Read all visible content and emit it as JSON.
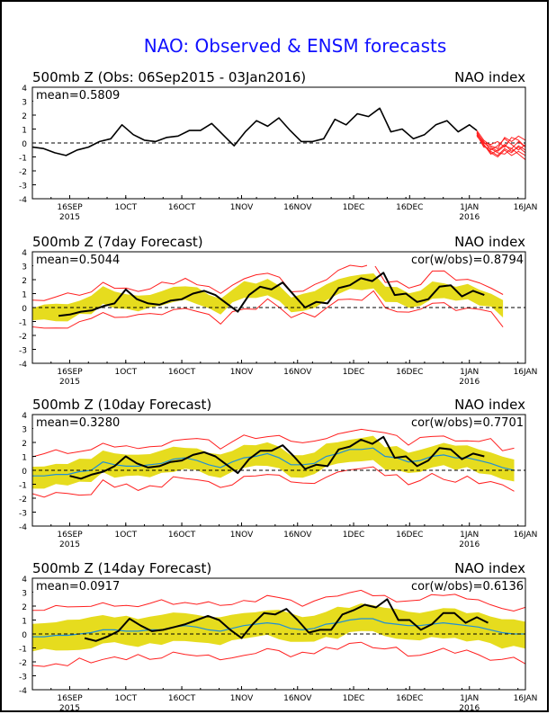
{
  "page": {
    "title": "NAO: Observed & ENSM forecasts",
    "title_color": "#1010ff",
    "border_color": "#000000"
  },
  "colors": {
    "observed": "#000000",
    "ensemble_members": "#ff2020",
    "spread_band": "#e6dc1e",
    "ensemble_mean": "#1e8fd8",
    "zero_line": "#000000"
  },
  "axes": {
    "ylim": [
      -4,
      4
    ],
    "yticks": [
      "4",
      "3",
      "2",
      "1",
      "0",
      "-1",
      "-2",
      "-3",
      "-4"
    ],
    "x_range_days": [
      "2015-09-06",
      "2016-01-16"
    ],
    "xticks": [
      {
        "date": "2015-09-16",
        "label": "16SEP",
        "year": "2015"
      },
      {
        "date": "2015-10-01",
        "label": "1OCT",
        "year": ""
      },
      {
        "date": "2015-10-16",
        "label": "16OCT",
        "year": ""
      },
      {
        "date": "2015-11-01",
        "label": "1NOV",
        "year": ""
      },
      {
        "date": "2015-11-16",
        "label": "16NOV",
        "year": ""
      },
      {
        "date": "2015-12-01",
        "label": "1DEC",
        "year": ""
      },
      {
        "date": "2015-12-16",
        "label": "16DEC",
        "year": ""
      },
      {
        "date": "2016-01-01",
        "label": "1JAN",
        "year": "2016"
      },
      {
        "date": "2016-01-16",
        "label": "16JAN",
        "year": ""
      }
    ]
  },
  "panels": [
    {
      "title": "500mb Z (Obs: 06Sep2015 - 03Jan2016)",
      "right_label": "NAO index",
      "mean_text": "mean=0.5809",
      "cor_text": ""
    },
    {
      "title": "500mb Z (7day Forecast)",
      "right_label": "NAO index",
      "mean_text": "mean=0.5044",
      "cor_text": "cor(w/obs)=0.8794"
    },
    {
      "title": "500mb Z (10day Forecast)",
      "right_label": "NAO index",
      "mean_text": "mean=0.3280",
      "cor_text": "cor(w/obs)=0.7701"
    },
    {
      "title": "500mb Z (14day Forecast)",
      "right_label": "NAO index",
      "mean_text": "mean=0.0917",
      "cor_text": "cor(w/obs)=0.6136"
    }
  ],
  "chart_data": [
    {
      "type": "line",
      "title": "500mb Z (Obs: 06Sep2015 - 03Jan2016)",
      "ylabel": "",
      "ylim": [
        -4,
        4
      ],
      "series": [
        {
          "key": "observed",
          "x": [
            "2015-09-06",
            "2015-09-09",
            "2015-09-12",
            "2015-09-15",
            "2015-09-18",
            "2015-09-21",
            "2015-09-24",
            "2015-09-27",
            "2015-09-30",
            "2015-10-03",
            "2015-10-06",
            "2015-10-09",
            "2015-10-12",
            "2015-10-15",
            "2015-10-18",
            "2015-10-21",
            "2015-10-24",
            "2015-10-27",
            "2015-10-30",
            "2015-11-02",
            "2015-11-05",
            "2015-11-08",
            "2015-11-11",
            "2015-11-14",
            "2015-11-17",
            "2015-11-20",
            "2015-11-23",
            "2015-11-26",
            "2015-11-29",
            "2015-12-02",
            "2015-12-05",
            "2015-12-08",
            "2015-12-11",
            "2015-12-14",
            "2015-12-17",
            "2015-12-20",
            "2015-12-23",
            "2015-12-26",
            "2015-12-29",
            "2016-01-01",
            "2016-01-03"
          ],
          "y": [
            -0.3,
            -0.4,
            -0.7,
            -0.9,
            -0.5,
            -0.3,
            0.1,
            0.3,
            1.3,
            0.6,
            0.2,
            0.1,
            0.4,
            0.5,
            0.9,
            0.9,
            1.4,
            0.6,
            -0.2,
            0.8,
            1.6,
            1.2,
            1.8,
            0.9,
            0.1,
            0.1,
            0.3,
            1.7,
            1.3,
            2.1,
            1.9,
            2.5,
            0.8,
            1.0,
            0.3,
            0.6,
            1.3,
            1.6,
            0.8,
            1.3,
            0.9
          ]
        }
      ],
      "ensemble_members": {
        "x_start": "2016-01-03",
        "x_end": "2016-01-16",
        "members": [
          [
            0.8,
            0.0,
            -0.3,
            -0.6,
            -0.2,
            -0.4,
            0.1,
            -0.3
          ],
          [
            0.6,
            -0.2,
            -0.6,
            -0.9,
            -0.4,
            -0.7,
            -0.2,
            -0.5
          ],
          [
            0.7,
            0.1,
            -0.5,
            -0.2,
            0.3,
            -0.1,
            -0.5,
            -0.1
          ],
          [
            0.5,
            -0.1,
            -0.7,
            -1.0,
            -0.5,
            -0.9,
            -0.6,
            -0.9
          ],
          [
            0.9,
            0.2,
            -0.2,
            -0.4,
            0.4,
            0.1,
            0.5,
            0.2
          ],
          [
            0.6,
            -0.3,
            -0.4,
            -0.7,
            -0.8,
            -0.4,
            -0.8,
            -1.2
          ],
          [
            0.7,
            0.0,
            -0.1,
            0.1,
            -0.3,
            0.4,
            0.2,
            -0.3
          ],
          [
            0.8,
            -0.1,
            -0.8,
            -0.5,
            -0.1,
            -0.6,
            -0.3,
            -0.7
          ]
        ]
      }
    },
    {
      "type": "line",
      "title": "500mb Z (7day Forecast)",
      "ylim": [
        -4,
        4
      ],
      "observed": {
        "x": [
          "2015-09-13",
          "2015-09-16",
          "2015-09-19",
          "2015-09-22",
          "2015-09-25",
          "2015-09-28",
          "2015-10-01",
          "2015-10-04",
          "2015-10-07",
          "2015-10-10",
          "2015-10-13",
          "2015-10-16",
          "2015-10-19",
          "2015-10-22",
          "2015-10-25",
          "2015-10-28",
          "2015-10-31",
          "2015-11-03",
          "2015-11-06",
          "2015-11-09",
          "2015-11-12",
          "2015-11-15",
          "2015-11-18",
          "2015-11-21",
          "2015-11-24",
          "2015-11-27",
          "2015-11-30",
          "2015-12-03",
          "2015-12-06",
          "2015-12-09",
          "2015-12-12",
          "2015-12-15",
          "2015-12-18",
          "2015-12-21",
          "2015-12-24",
          "2015-12-27",
          "2015-12-30",
          "2016-01-02",
          "2016-01-05"
        ],
        "y": [
          -0.6,
          -0.5,
          -0.3,
          -0.2,
          0.1,
          0.3,
          1.3,
          0.6,
          0.3,
          0.2,
          0.5,
          0.6,
          1.0,
          1.2,
          0.9,
          0.3,
          -0.3,
          0.9,
          1.5,
          1.3,
          1.8,
          0.9,
          0.0,
          0.4,
          0.3,
          1.4,
          1.6,
          2.1,
          1.9,
          2.5,
          0.9,
          1.0,
          0.4,
          0.6,
          1.5,
          1.6,
          0.8,
          1.2,
          0.9
        ]
      },
      "ensemble_mean": {
        "x_start": "2015-09-06",
        "x_end": "2016-01-10",
        "y": [
          -0.5,
          -0.4,
          -0.3,
          -0.3,
          0.0,
          0.2,
          0.9,
          0.6,
          0.4,
          0.3,
          0.5,
          0.6,
          0.9,
          1.0,
          0.8,
          0.4,
          0.1,
          0.8,
          1.2,
          1.1,
          1.4,
          0.9,
          0.3,
          0.4,
          0.5,
          1.2,
          1.4,
          1.8,
          1.7,
          2.0,
          1.0,
          0.9,
          0.5,
          0.7,
          1.3,
          1.3,
          0.9,
          1.0,
          0.8,
          0.5,
          -0.1
        ]
      },
      "spread_halfwidth": 0.55,
      "red_envelope_extra": 0.5
    },
    {
      "type": "line",
      "title": "500mb Z (10day Forecast)",
      "ylim": [
        -4,
        4
      ],
      "observed": {
        "x": [
          "2015-09-16",
          "2015-09-19",
          "2015-09-22",
          "2015-09-25",
          "2015-09-28",
          "2015-10-01",
          "2015-10-04",
          "2015-10-07",
          "2015-10-10",
          "2015-10-13",
          "2015-10-16",
          "2015-10-19",
          "2015-10-22",
          "2015-10-25",
          "2015-10-28",
          "2015-10-31",
          "2015-11-03",
          "2015-11-06",
          "2015-11-09",
          "2015-11-12",
          "2015-11-15",
          "2015-11-18",
          "2015-11-21",
          "2015-11-24",
          "2015-11-27",
          "2015-11-30",
          "2015-12-03",
          "2015-12-06",
          "2015-12-09",
          "2015-12-12",
          "2015-12-15",
          "2015-12-18",
          "2015-12-21",
          "2015-12-24",
          "2015-12-27",
          "2015-12-30",
          "2016-01-02",
          "2016-01-05"
        ],
        "y": [
          -0.4,
          -0.6,
          -0.3,
          -0.1,
          0.3,
          1.0,
          0.5,
          0.2,
          0.3,
          0.6,
          0.7,
          1.1,
          1.3,
          1.0,
          0.4,
          -0.2,
          0.8,
          1.4,
          1.4,
          1.8,
          1.0,
          0.1,
          0.4,
          0.3,
          1.5,
          1.7,
          2.2,
          1.9,
          2.4,
          0.9,
          1.0,
          0.3,
          0.7,
          1.6,
          1.5,
          0.8,
          1.2,
          1.0
        ]
      },
      "ensemble_mean": {
        "x_start": "2015-09-06",
        "x_end": "2016-01-13",
        "y": [
          -0.4,
          -0.4,
          -0.3,
          -0.3,
          -0.1,
          0.0,
          0.6,
          0.4,
          0.3,
          0.3,
          0.4,
          0.5,
          0.8,
          0.9,
          0.7,
          0.4,
          0.2,
          0.6,
          0.9,
          1.0,
          1.2,
          0.9,
          0.4,
          0.4,
          0.5,
          1.0,
          1.2,
          1.5,
          1.5,
          1.6,
          1.0,
          0.9,
          0.6,
          0.7,
          1.0,
          1.1,
          0.9,
          0.9,
          0.7,
          0.5,
          0.2,
          0.0
        ]
      },
      "spread_halfwidth": 0.8,
      "red_envelope_extra": 0.7
    },
    {
      "type": "line",
      "title": "500mb Z (14day Forecast)",
      "ylim": [
        -4,
        4
      ],
      "observed": {
        "x": [
          "2015-09-20",
          "2015-09-23",
          "2015-09-26",
          "2015-09-29",
          "2015-10-02",
          "2015-10-05",
          "2015-10-08",
          "2015-10-11",
          "2015-10-14",
          "2015-10-17",
          "2015-10-20",
          "2015-10-23",
          "2015-10-26",
          "2015-10-29",
          "2015-11-01",
          "2015-11-04",
          "2015-11-07",
          "2015-11-10",
          "2015-11-13",
          "2015-11-16",
          "2015-11-19",
          "2015-11-22",
          "2015-11-25",
          "2015-11-28",
          "2015-12-01",
          "2015-12-04",
          "2015-12-07",
          "2015-12-10",
          "2015-12-13",
          "2015-12-16",
          "2015-12-19",
          "2015-12-22",
          "2015-12-25",
          "2015-12-28",
          "2015-12-31",
          "2016-01-03",
          "2016-01-06"
        ],
        "y": [
          -0.3,
          -0.5,
          -0.2,
          0.2,
          1.1,
          0.6,
          0.2,
          0.3,
          0.5,
          0.7,
          1.0,
          1.3,
          1.0,
          0.3,
          -0.3,
          0.7,
          1.5,
          1.4,
          1.8,
          1.0,
          0.1,
          0.3,
          0.3,
          1.4,
          1.7,
          2.1,
          1.9,
          2.5,
          1.0,
          1.0,
          0.3,
          0.7,
          1.5,
          1.5,
          0.8,
          1.2,
          0.8
        ]
      },
      "ensemble_mean": {
        "x_start": "2015-09-06",
        "x_end": "2016-01-16",
        "y": [
          -0.2,
          -0.2,
          -0.1,
          -0.1,
          0.0,
          0.1,
          0.3,
          0.3,
          0.2,
          0.2,
          0.3,
          0.3,
          0.5,
          0.6,
          0.5,
          0.3,
          0.2,
          0.4,
          0.6,
          0.7,
          0.8,
          0.7,
          0.4,
          0.3,
          0.4,
          0.7,
          0.8,
          1.0,
          1.1,
          1.1,
          0.8,
          0.7,
          0.6,
          0.6,
          0.7,
          0.8,
          0.7,
          0.6,
          0.5,
          0.3,
          0.1,
          0.0,
          0.0
        ]
      },
      "spread_halfwidth": 1.0,
      "red_envelope_extra": 0.9
    }
  ]
}
